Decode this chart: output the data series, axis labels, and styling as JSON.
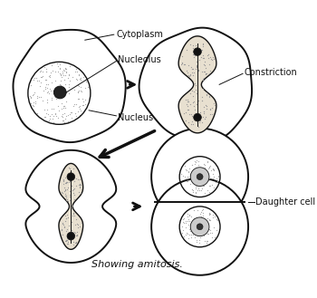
{
  "title": "Showing amitosis.",
  "title_fontsize": 8,
  "bg_color": "#ffffff",
  "cell_edge_color": "#111111",
  "nucleus_fill": "#e8e0d0",
  "labels": {
    "cytoplasm": "Cytoplasm",
    "nucleolus": "Nucleolus",
    "nucleus": "Nucleus",
    "constriction": "Constriction",
    "daughter_cell": "Daughter cell"
  },
  "label_fontsize": 7,
  "arrow_color": "#111111",
  "cell_lw": 1.4,
  "nucleus_lw": 1.0,
  "dot_color": "#999999",
  "dark_dot": "#111111"
}
